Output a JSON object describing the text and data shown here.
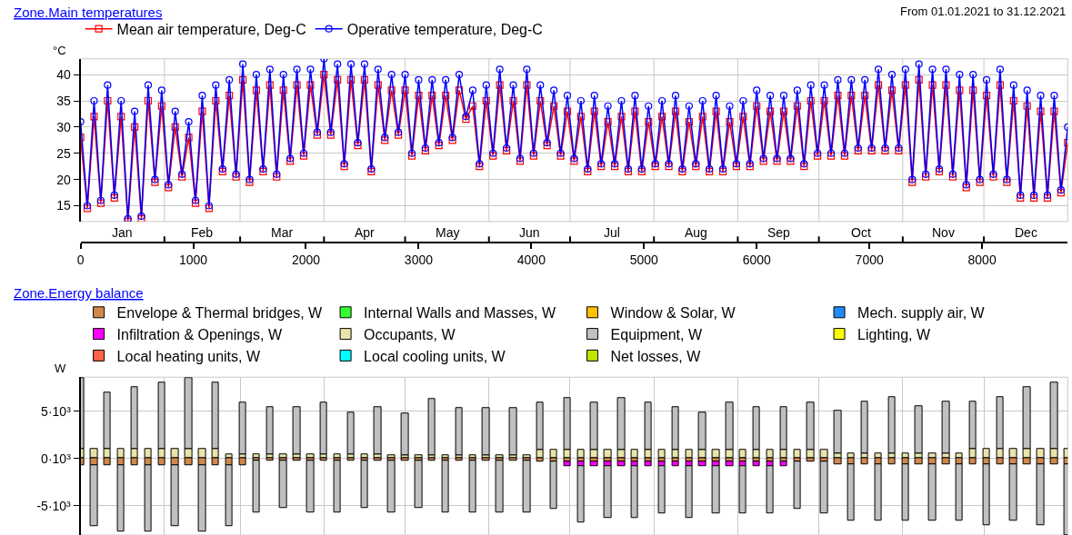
{
  "chart_data": [
    {
      "type": "line",
      "title": "Zone.Main temperatures",
      "subtitle": "From 01.01.2021 to 31.12.2021",
      "ylabel": "°C",
      "x": [
        0,
        60,
        120,
        180,
        240,
        300,
        360,
        420,
        480,
        540,
        600,
        660,
        720,
        780,
        840,
        900,
        960,
        1020,
        1080,
        1140,
        1200,
        1260,
        1320,
        1380,
        1440,
        1500,
        1560,
        1620,
        1680,
        1740,
        1800,
        1860,
        1920,
        1980,
        2040,
        2100,
        2160,
        2220,
        2280,
        2340,
        2400,
        2460,
        2520,
        2580,
        2640,
        2700,
        2760,
        2820,
        2880,
        2940,
        3000,
        3060,
        3120,
        3180,
        3240,
        3300,
        3360,
        3420,
        3480,
        3540,
        3600,
        3660,
        3720,
        3780,
        3840,
        3900,
        3960,
        4020,
        4080,
        4140,
        4200,
        4260,
        4320,
        4380,
        4440,
        4500,
        4560,
        4620,
        4680,
        4740,
        4800,
        4860,
        4920,
        4980,
        5040,
        5100,
        5160,
        5220,
        5280,
        5340,
        5400,
        5460,
        5520,
        5580,
        5640,
        5700,
        5760,
        5820,
        5880,
        5940,
        6000,
        6060,
        6120,
        6180,
        6240,
        6300,
        6360,
        6420,
        6480,
        6540,
        6600,
        6660,
        6720,
        6780,
        6840,
        6900,
        6960,
        7020,
        7080,
        7140,
        7200,
        7260,
        7320,
        7380,
        7440,
        7500,
        7560,
        7620,
        7680,
        7740,
        7800,
        7860,
        7920,
        7980,
        8040,
        8100,
        8160,
        8220,
        8280,
        8340,
        8400,
        8460,
        8520,
        8580,
        8640,
        8700,
        8760
      ],
      "xlim": [
        0,
        8760
      ],
      "xticks": [
        0,
        1000,
        2000,
        3000,
        4000,
        5000,
        6000,
        7000,
        8000
      ],
      "ref_lines": [
        {
          "axis": "x",
          "value": 744,
          "color": "#c8c8c8"
        },
        {
          "axis": "x",
          "value": 1416,
          "color": "#c8c8c8"
        },
        {
          "axis": "x",
          "value": 2160,
          "color": "#c8c8c8"
        },
        {
          "axis": "x",
          "value": 2880,
          "color": "#c8c8c8"
        },
        {
          "axis": "x",
          "value": 3624,
          "color": "#c8c8c8"
        },
        {
          "axis": "x",
          "value": 4344,
          "color": "#c8c8c8"
        },
        {
          "axis": "x",
          "value": 5088,
          "color": "#c8c8c8"
        },
        {
          "axis": "x",
          "value": 5832,
          "color": "#c8c8c8"
        },
        {
          "axis": "x",
          "value": 6552,
          "color": "#c8c8c8"
        },
        {
          "axis": "x",
          "value": 7296,
          "color": "#c8c8c8"
        },
        {
          "axis": "x",
          "value": 8016,
          "color": "#c8c8c8"
        }
      ],
      "annotations": [
        "Jan",
        "Feb",
        "Mar",
        "Apr",
        "May",
        "Jun",
        "Jul",
        "Aug",
        "Sep",
        "Oct",
        "Nov",
        "Dec"
      ],
      "ylim": [
        12,
        43
      ],
      "yticks": [
        15,
        20,
        25,
        30,
        35,
        40
      ],
      "grid": "y",
      "legend": "top",
      "series": [
        {
          "name": "Mean air temperature, Deg-C",
          "color": "#ff0000",
          "marker": "square",
          "values": [
            28,
            14.5,
            32,
            15.5,
            35,
            16.5,
            32,
            12,
            30,
            12.5,
            35,
            19.5,
            34,
            18.5,
            30,
            20.5,
            28,
            15.5,
            33,
            14.5,
            35,
            21.5,
            36,
            20.5,
            39,
            19.5,
            37,
            21.5,
            38,
            20.5,
            37,
            23.5,
            38,
            24.5,
            38,
            28.5,
            40,
            28.5,
            39,
            22.5,
            39,
            26.5,
            39,
            21.5,
            38,
            27.5,
            37,
            28.5,
            37,
            24.5,
            36,
            25.5,
            36,
            26.5,
            36,
            27.5,
            37,
            31.5,
            34,
            22.5,
            35,
            24.5,
            38,
            25.5,
            35,
            23.5,
            38,
            24.5,
            35,
            26.5,
            34,
            24.5,
            33,
            23.5,
            32,
            21.5,
            33,
            22.5,
            31,
            22.5,
            32,
            21.5,
            33,
            21.5,
            31,
            22.5,
            32,
            22.5,
            33,
            21.5,
            31,
            22.5,
            32,
            21.5,
            33,
            21.5,
            31,
            22.5,
            32,
            22.5,
            34,
            23.5,
            33,
            23.5,
            33,
            23.5,
            34,
            22.5,
            35,
            24.5,
            35,
            24.5,
            36,
            24.5,
            36,
            25.5,
            36,
            25.5,
            38,
            25.5,
            37,
            25.5,
            38,
            19.5,
            39,
            20.5,
            38,
            21.5,
            38,
            20.5,
            37,
            18.5,
            37,
            19.5,
            36,
            20.5,
            38,
            19.5,
            35,
            16.5,
            34,
            16.5,
            33,
            16.5,
            33,
            17.5,
            27
          ]
        },
        {
          "name": "Operative temperature, Deg-C",
          "color": "#0000ff",
          "marker": "circle",
          "values": [
            31,
            15,
            35,
            16,
            38,
            17,
            35,
            12.5,
            33,
            13,
            38,
            20,
            37,
            19,
            33,
            21,
            31,
            16,
            36,
            15,
            38,
            22,
            39,
            21,
            42,
            20,
            40,
            22,
            41,
            21,
            40,
            24,
            41,
            25,
            41,
            29,
            43,
            29,
            42,
            23,
            42,
            27,
            42,
            22,
            41,
            28,
            40,
            29,
            40,
            25,
            39,
            26,
            39,
            27,
            39,
            28,
            40,
            32,
            37,
            23,
            38,
            25,
            41,
            26,
            38,
            24,
            41,
            25,
            38,
            27,
            37,
            25,
            36,
            24,
            35,
            22,
            36,
            23,
            34,
            23,
            35,
            22,
            36,
            22,
            34,
            23,
            35,
            23,
            36,
            22,
            34,
            23,
            35,
            22,
            36,
            22,
            34,
            23,
            35,
            23,
            37,
            24,
            36,
            24,
            36,
            24,
            37,
            23,
            38,
            25,
            38,
            25,
            39,
            25,
            39,
            26,
            39,
            26,
            41,
            26,
            40,
            26,
            41,
            20,
            42,
            21,
            41,
            22,
            41,
            21,
            40,
            19,
            40,
            20,
            39,
            21,
            41,
            20,
            38,
            17,
            37,
            17,
            36,
            17,
            36,
            18,
            30
          ]
        }
      ]
    },
    {
      "type": "bar",
      "stacked": true,
      "title": "Zone.Energy balance",
      "ylabel": "W",
      "x": [
        0,
        120,
        240,
        360,
        480,
        600,
        720,
        840,
        960,
        1080,
        1200,
        1320,
        1440,
        1560,
        1680,
        1800,
        1920,
        2040,
        2160,
        2280,
        2400,
        2520,
        2640,
        2760,
        2880,
        3000,
        3120,
        3240,
        3360,
        3480,
        3600,
        3720,
        3840,
        3960,
        4080,
        4200,
        4320,
        4440,
        4560,
        4680,
        4800,
        4920,
        5040,
        5160,
        5280,
        5400,
        5520,
        5640,
        5760,
        5880,
        6000,
        6120,
        6240,
        6360,
        6480,
        6600,
        6720,
        6840,
        6960,
        7080,
        7200,
        7320,
        7440,
        7560,
        7680,
        7800,
        7920,
        8040,
        8160,
        8280,
        8400,
        8520,
        8640,
        8760
      ],
      "xlim": [
        0,
        8760
      ],
      "xticks": [
        {
          "value": 744,
          "label": null
        },
        {
          "value": 1416,
          "label": null
        },
        {
          "value": 2160,
          "label": null
        },
        {
          "value": 2880,
          "label": null
        },
        {
          "value": 3624,
          "label": null
        },
        {
          "value": 4344,
          "label": null
        },
        {
          "value": 5088,
          "label": null
        },
        {
          "value": 5832,
          "label": null
        },
        {
          "value": 6552,
          "label": null
        },
        {
          "value": 7296,
          "label": null
        },
        {
          "value": 8016,
          "label": null
        }
      ],
      "ylim": [
        -8100,
        8600
      ],
      "yticks": [
        {
          "value": -5000,
          "label": "-5·10³"
        },
        {
          "value": 0,
          "label": "0·10³"
        },
        {
          "value": 5000,
          "label": "5·10³"
        }
      ],
      "tick_labels": "y",
      "grid": true,
      "legend": "top",
      "series": [
        {
          "name": "Envelope & Thermal bridges, W",
          "color": "#d2874a",
          "values": [
            -700,
            -700,
            -700,
            -700,
            -700,
            -700,
            -700,
            -700,
            -700,
            -700,
            -700,
            -700,
            -700,
            -200,
            -200,
            -200,
            -200,
            -200,
            -200,
            -200,
            -200,
            -200,
            -200,
            -200,
            -200,
            -200,
            -200,
            -200,
            -200,
            -200,
            -200,
            -200,
            -200,
            -200,
            -300,
            -300,
            -300,
            -300,
            -300,
            -300,
            -300,
            -300,
            -300,
            -300,
            -300,
            -300,
            -300,
            -300,
            -300,
            -300,
            -300,
            -300,
            -300,
            -300,
            -300,
            -300,
            -600,
            -600,
            -600,
            -600,
            -600,
            -600,
            -600,
            -600,
            -600,
            -600,
            -600,
            -600,
            -600,
            -600,
            -600,
            -600,
            -600,
            -600
          ]
        },
        {
          "name": "Internal Walls and Masses, W",
          "color": "#33ff33",
          "values": [
            null,
            null,
            null,
            null,
            null,
            null,
            null,
            null,
            null,
            null,
            null,
            null,
            null,
            null,
            null,
            null,
            null,
            null,
            null,
            null,
            null,
            null,
            null,
            null,
            null,
            null,
            null,
            null,
            null,
            null,
            null,
            null,
            null,
            null,
            null,
            null,
            null,
            null,
            null,
            null,
            null,
            null,
            null,
            null,
            null,
            null,
            null,
            null,
            null,
            null,
            null,
            null,
            null,
            null,
            null,
            null,
            null,
            null,
            null,
            null,
            null,
            null,
            null,
            null,
            null,
            null,
            null,
            null,
            null,
            null,
            null,
            null,
            null,
            null
          ]
        },
        {
          "name": "Window & Solar, W",
          "color": "#ffc000",
          "values": [
            null,
            null,
            null,
            null,
            null,
            null,
            null,
            null,
            null,
            null,
            null,
            null,
            null,
            null,
            null,
            null,
            null,
            null,
            null,
            null,
            null,
            null,
            null,
            null,
            null,
            null,
            null,
            null,
            null,
            null,
            null,
            null,
            null,
            null,
            null,
            null,
            null,
            null,
            null,
            null,
            null,
            null,
            null,
            null,
            null,
            null,
            null,
            null,
            null,
            null,
            null,
            null,
            null,
            null,
            null,
            null,
            null,
            null,
            null,
            null,
            null,
            null,
            null,
            null,
            null,
            null,
            null,
            null,
            null,
            null,
            null,
            null,
            null,
            null
          ]
        },
        {
          "name": "Mech. supply air, W",
          "color": "#1e8cff",
          "values": [
            null,
            null,
            null,
            null,
            null,
            null,
            null,
            null,
            null,
            null,
            null,
            null,
            null,
            null,
            null,
            null,
            null,
            null,
            null,
            null,
            null,
            null,
            null,
            null,
            null,
            null,
            null,
            null,
            null,
            null,
            null,
            null,
            null,
            null,
            null,
            null,
            null,
            null,
            null,
            null,
            null,
            null,
            null,
            null,
            null,
            null,
            null,
            null,
            null,
            null,
            null,
            null,
            null,
            null,
            null,
            null,
            null,
            null,
            null,
            null,
            null,
            null,
            null,
            null,
            null,
            null,
            null,
            null,
            null,
            null,
            null,
            null,
            null,
            null
          ]
        },
        {
          "name": "Infiltration & Openings, W",
          "color": "#ff00ff",
          "values": [
            null,
            null,
            null,
            null,
            null,
            null,
            null,
            null,
            null,
            null,
            null,
            null,
            null,
            null,
            null,
            null,
            null,
            null,
            null,
            null,
            null,
            null,
            null,
            null,
            null,
            null,
            null,
            null,
            null,
            null,
            null,
            null,
            null,
            null,
            null,
            null,
            -500,
            -500,
            -500,
            -500,
            -500,
            -500,
            -500,
            -500,
            -500,
            -500,
            -500,
            -500,
            -500,
            -500,
            -500,
            -500,
            -500,
            null,
            null,
            null,
            null,
            null,
            null,
            null,
            null,
            null,
            null,
            null,
            null,
            null,
            null,
            null,
            null,
            null,
            null,
            null,
            null,
            null
          ]
        },
        {
          "name": "Occupants, W",
          "color": "#e8e4aa",
          "values": [
            1000,
            1000,
            1000,
            1000,
            1000,
            1000,
            1000,
            1000,
            1000,
            1000,
            1000,
            400,
            400,
            400,
            400,
            400,
            400,
            400,
            400,
            400,
            400,
            400,
            400,
            300,
            300,
            300,
            300,
            300,
            300,
            300,
            300,
            300,
            300,
            300,
            900,
            900,
            900,
            900,
            900,
            900,
            900,
            900,
            900,
            900,
            900,
            900,
            900,
            900,
            900,
            900,
            900,
            900,
            900,
            900,
            900,
            900,
            500,
            500,
            500,
            500,
            500,
            500,
            500,
            500,
            500,
            500,
            1000,
            1000,
            1000,
            1000,
            1000,
            1000,
            1000,
            1000
          ]
        },
        {
          "name": "Equipment, W",
          "color": "#c0c0c0",
          "values": [
            7500,
            -6500,
            6000,
            -7000,
            6500,
            -7000,
            7000,
            -6500,
            7500,
            -7000,
            7000,
            -6500,
            5500,
            -5500,
            5000,
            -5000,
            5000,
            -5500,
            5500,
            -5500,
            4500,
            -5000,
            5000,
            -5500,
            4500,
            -5000,
            6000,
            -5500,
            5000,
            -5500,
            5000,
            -5500,
            5000,
            -5500,
            5000,
            -5000,
            5500,
            -6000,
            5000,
            -5500,
            5500,
            -5500,
            5000,
            -5000,
            4500,
            -5500,
            4000,
            -5000,
            5000,
            -5000,
            4500,
            -5000,
            4500,
            -5000,
            5000,
            -5500,
            4500,
            -6000,
            5500,
            -6000,
            6000,
            -6000,
            5000,
            -6000,
            5500,
            -6000,
            5000,
            -6500,
            5500,
            -6000,
            6500,
            -6500,
            7000,
            -7500
          ]
        },
        {
          "name": "Lighting, W",
          "color": "#ffff00",
          "values": [
            null,
            null,
            null,
            null,
            null,
            null,
            null,
            null,
            null,
            null,
            null,
            null,
            null,
            null,
            null,
            null,
            null,
            null,
            null,
            null,
            null,
            null,
            null,
            null,
            null,
            null,
            null,
            null,
            null,
            null,
            null,
            null,
            null,
            null,
            null,
            null,
            null,
            null,
            null,
            null,
            null,
            null,
            null,
            null,
            null,
            null,
            null,
            null,
            null,
            null,
            null,
            null,
            null,
            null,
            null,
            null,
            null,
            null,
            null,
            null,
            null,
            null,
            null,
            null,
            null,
            null,
            null,
            null,
            null,
            null,
            null,
            null,
            null,
            null
          ]
        },
        {
          "name": "Local heating units, W",
          "color": "#ff6347",
          "values": [
            null,
            null,
            null,
            null,
            null,
            null,
            null,
            null,
            null,
            null,
            null,
            null,
            null,
            null,
            null,
            null,
            null,
            null,
            null,
            null,
            null,
            null,
            null,
            null,
            null,
            null,
            null,
            null,
            null,
            null,
            null,
            null,
            null,
            null,
            null,
            null,
            null,
            null,
            null,
            null,
            null,
            null,
            null,
            null,
            null,
            null,
            null,
            null,
            null,
            null,
            null,
            null,
            null,
            null,
            null,
            null,
            null,
            null,
            null,
            null,
            null,
            null,
            null,
            null,
            null,
            null,
            null,
            null,
            null,
            null,
            null,
            null,
            null,
            null
          ]
        },
        {
          "name": "Local cooling units, W",
          "color": "#00ffff",
          "values": [
            null,
            null,
            null,
            null,
            null,
            null,
            null,
            null,
            null,
            null,
            null,
            null,
            null,
            null,
            null,
            null,
            null,
            null,
            null,
            null,
            null,
            null,
            null,
            null,
            null,
            null,
            null,
            null,
            null,
            null,
            null,
            null,
            null,
            null,
            null,
            null,
            null,
            null,
            null,
            null,
            null,
            null,
            null,
            null,
            null,
            null,
            null,
            null,
            null,
            null,
            null,
            null,
            null,
            null,
            null,
            null,
            null,
            null,
            null,
            null,
            null,
            null,
            null,
            null,
            null,
            null,
            null,
            null,
            null,
            null,
            null,
            null,
            null,
            null
          ]
        },
        {
          "name": "Net losses, W",
          "color": "#bfe600",
          "values": [
            null,
            null,
            null,
            null,
            null,
            null,
            null,
            null,
            null,
            null,
            null,
            null,
            null,
            null,
            null,
            null,
            null,
            null,
            null,
            null,
            null,
            null,
            null,
            null,
            null,
            null,
            null,
            null,
            null,
            null,
            null,
            null,
            null,
            null,
            null,
            null,
            null,
            null,
            null,
            null,
            null,
            null,
            null,
            null,
            null,
            null,
            null,
            null,
            null,
            null,
            null,
            null,
            null,
            null,
            null,
            null,
            null,
            null,
            null,
            null,
            null,
            null,
            null,
            null,
            null,
            null,
            null,
            null,
            null,
            null,
            null,
            null,
            null,
            null
          ]
        }
      ]
    }
  ]
}
